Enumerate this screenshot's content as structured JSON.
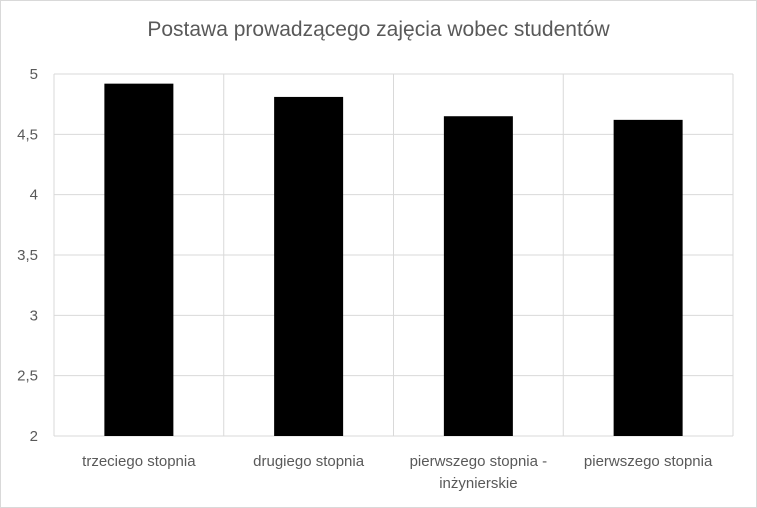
{
  "chart_data": {
    "type": "bar",
    "title": "Postawa prowadzącego zajęcia wobec studentów",
    "categories": [
      "trzeciego stopnia",
      "drugiego stopnia",
      "pierwszego stopnia - inżynierskie",
      "pierwszego stopnia"
    ],
    "category_lines": [
      [
        "trzeciego stopnia"
      ],
      [
        "drugiego stopnia"
      ],
      [
        "pierwszego stopnia -",
        "inżynierskie"
      ],
      [
        "pierwszego stopnia"
      ]
    ],
    "values": [
      4.92,
      4.81,
      4.65,
      4.62
    ],
    "ylim": [
      2,
      5
    ],
    "yticks": [
      "2",
      "2,5",
      "3",
      "3,5",
      "4",
      "4,5",
      "5"
    ],
    "ytick_values": [
      2,
      2.5,
      3,
      3.5,
      4,
      4.5,
      5
    ],
    "grid": true,
    "bar_color": "#000000",
    "grid_color": "#d9d9d9"
  }
}
